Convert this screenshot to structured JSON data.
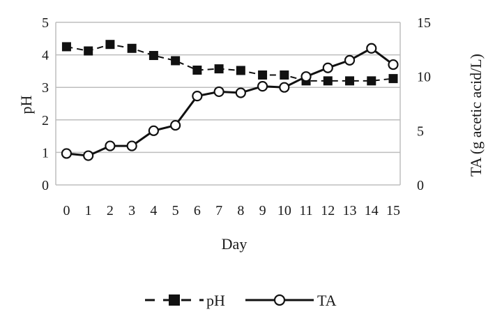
{
  "chart_data": {
    "type": "line",
    "x": [
      0,
      1,
      2,
      3,
      4,
      5,
      6,
      7,
      8,
      9,
      10,
      11,
      12,
      13,
      14,
      15
    ],
    "xlabel": "Day",
    "ylabel_left": "pH",
    "ylabel_right": "TA (g acetic acid/L)",
    "ylim_left": [
      0,
      5
    ],
    "yticks_left": [
      0,
      1,
      2,
      3,
      4,
      5
    ],
    "ylim_right": [
      0,
      15
    ],
    "yticks_right": [
      0,
      5,
      10,
      15
    ],
    "grid": "horizontal",
    "legend_position": "bottom",
    "series": [
      {
        "name": "pH",
        "axis": "left",
        "line_style": "dashed",
        "marker": "square",
        "values": [
          4.25,
          4.12,
          4.32,
          4.2,
          3.98,
          3.82,
          3.53,
          3.57,
          3.52,
          3.38,
          3.38,
          3.2,
          3.2,
          3.2,
          3.2,
          3.27
        ]
      },
      {
        "name": "TA",
        "axis": "right",
        "line_style": "solid",
        "marker": "circle-open",
        "values": [
          2.9,
          2.7,
          3.6,
          3.6,
          5.0,
          5.5,
          8.2,
          8.6,
          8.5,
          9.1,
          9.0,
          10.0,
          10.8,
          11.5,
          12.6,
          11.1
        ]
      }
    ],
    "colors": {
      "line": "#111111",
      "grid": "#bdbdbd",
      "axis": "#bdbdbd",
      "marker_fill": "#ffffff"
    }
  }
}
